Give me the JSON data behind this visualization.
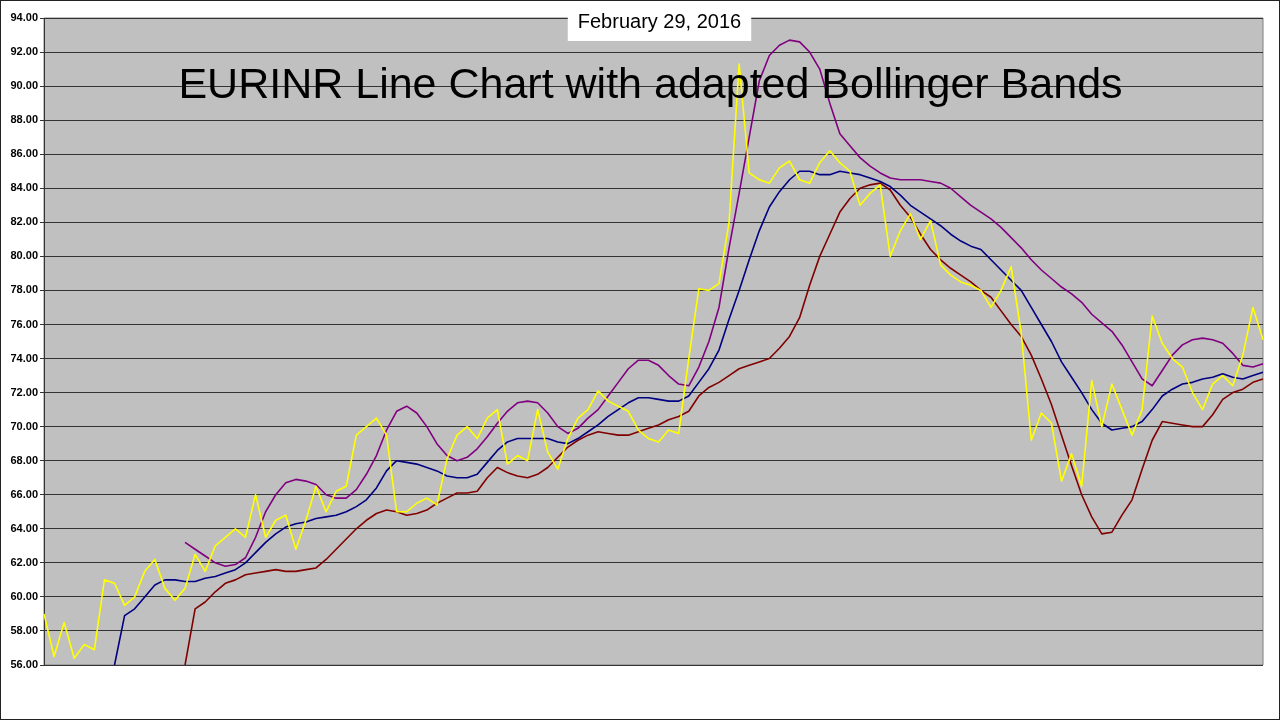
{
  "chart_data": {
    "type": "line",
    "title": "EURINR Line Chart with adapted Bollinger Bands",
    "subtitle": "February 29, 2016",
    "categories": [
      null,
      null,
      null,
      null,
      null,
      null,
      null,
      null,
      null,
      null,
      null,
      null,
      null,
      null,
      null,
      null,
      null,
      null,
      null,
      null,
      null,
      null,
      null,
      null,
      null,
      null,
      null,
      null,
      null,
      null,
      null,
      null,
      null,
      null,
      null,
      null,
      null,
      null,
      null,
      null,
      null,
      null,
      null,
      null,
      null,
      null,
      null,
      null,
      null,
      null,
      null,
      null,
      null,
      null,
      null,
      null,
      null,
      null,
      null,
      null,
      null,
      null,
      null,
      null,
      null,
      null,
      null,
      null,
      null,
      null,
      null,
      null,
      null,
      null,
      null,
      null,
      null,
      null,
      null,
      null,
      null,
      null,
      null,
      null,
      null,
      null,
      null,
      null,
      null,
      null,
      null,
      null,
      null,
      null,
      null,
      null,
      null,
      null,
      null,
      null,
      null,
      null,
      null,
      null,
      null,
      null,
      null,
      null,
      null,
      null,
      null,
      null,
      null,
      null,
      null,
      null,
      null,
      null,
      null,
      null,
      null,
      null
    ],
    "series": [
      {
        "color": "#ffff00",
        "values": [
          59.0,
          56.5,
          58.5,
          56.4,
          57.2,
          56.9,
          61.0,
          60.8,
          59.5,
          60.0,
          61.5,
          62.2,
          60.5,
          59.8,
          60.5,
          62.5,
          61.5,
          63.0,
          63.5,
          64.0,
          63.5,
          66.0,
          63.5,
          64.5,
          64.8,
          62.8,
          64.5,
          66.5,
          65.0,
          66.2,
          66.5,
          69.5,
          70.0,
          70.5,
          69.5,
          65.0,
          65.0,
          65.5,
          65.8,
          65.4,
          68.1,
          69.5,
          70.0,
          69.3,
          70.5,
          71.0,
          67.8,
          68.3,
          68.0,
          71.0,
          68.5,
          67.5,
          69.3,
          70.5,
          71.0,
          72.1,
          71.5,
          71.2,
          70.9,
          69.8,
          69.3,
          69.1,
          69.8,
          69.6,
          74.0,
          78.1,
          78.0,
          78.4,
          82.0,
          91.3,
          84.9,
          84.5,
          84.3,
          85.2,
          85.6,
          84.5,
          84.3,
          85.5,
          86.2,
          85.5,
          85.0,
          83.0,
          83.7,
          84.2,
          80.0,
          81.5,
          82.5,
          81.0,
          82.1,
          79.5,
          78.9,
          78.5,
          78.3,
          78.0,
          77.0,
          78.0,
          79.4,
          75.5,
          69.2,
          70.8,
          70.2,
          66.8,
          68.4,
          66.5,
          72.7,
          70.0,
          72.5,
          71.0,
          69.5,
          71.0,
          76.5,
          74.9,
          74.0,
          73.5,
          72.0,
          71.0,
          72.5,
          73.0,
          72.4,
          74.2,
          77.0,
          75.1
        ]
      },
      {
        "color": "#000080",
        "values": [
          null,
          null,
          null,
          null,
          null,
          null,
          null,
          56.0,
          58.9,
          59.3,
          60.0,
          60.7,
          61.0,
          61.0,
          60.9,
          60.9,
          61.1,
          61.2,
          61.4,
          61.6,
          62.0,
          62.6,
          63.2,
          63.7,
          64.1,
          64.3,
          64.4,
          64.6,
          64.7,
          64.8,
          65.0,
          65.3,
          65.7,
          66.4,
          67.4,
          68.0,
          67.9,
          67.8,
          67.6,
          67.4,
          67.1,
          67.0,
          67.0,
          67.2,
          67.9,
          68.6,
          69.1,
          69.3,
          69.3,
          69.3,
          69.3,
          69.1,
          69.0,
          69.3,
          69.7,
          70.1,
          70.6,
          71.0,
          71.4,
          71.7,
          71.7,
          71.6,
          71.5,
          71.5,
          71.8,
          72.6,
          73.4,
          74.5,
          76.3,
          78.0,
          79.8,
          81.5,
          82.9,
          83.8,
          84.5,
          85.0,
          85.0,
          84.8,
          84.8,
          85.0,
          84.9,
          84.8,
          84.6,
          84.4,
          84.1,
          83.6,
          83.0,
          82.6,
          82.2,
          81.8,
          81.3,
          80.9,
          80.6,
          80.4,
          79.8,
          79.2,
          78.6,
          78.0,
          77.0,
          76.0,
          75.0,
          73.8,
          72.9,
          72.0,
          71.0,
          70.2,
          69.8,
          69.9,
          70.0,
          70.3,
          71.0,
          71.8,
          72.2,
          72.5,
          72.6,
          72.8,
          72.9,
          73.1,
          72.9,
          72.8,
          73.0,
          73.2
        ]
      },
      {
        "color": "#800080",
        "values": [
          null,
          null,
          null,
          null,
          null,
          null,
          null,
          null,
          null,
          null,
          null,
          null,
          null,
          null,
          63.2,
          62.8,
          62.4,
          62.0,
          61.8,
          61.9,
          62.3,
          63.5,
          65.0,
          66.0,
          66.7,
          66.9,
          66.8,
          66.6,
          66.0,
          65.8,
          65.8,
          66.3,
          67.2,
          68.3,
          69.8,
          70.9,
          71.2,
          70.8,
          70.0,
          69.0,
          68.3,
          68.0,
          68.2,
          68.7,
          69.4,
          70.2,
          70.9,
          71.4,
          71.5,
          71.4,
          70.8,
          70.0,
          69.6,
          69.9,
          70.5,
          71.0,
          71.8,
          72.6,
          73.4,
          73.9,
          73.9,
          73.6,
          73.0,
          72.5,
          72.4,
          73.5,
          75.0,
          77.0,
          80.5,
          83.7,
          87.0,
          90.3,
          91.8,
          92.4,
          92.7,
          92.6,
          92.0,
          91.0,
          89.0,
          87.2,
          86.5,
          85.8,
          85.3,
          84.9,
          84.6,
          84.5,
          84.5,
          84.5,
          84.4,
          84.3,
          84.0,
          83.5,
          83.0,
          82.6,
          82.2,
          81.7,
          81.1,
          80.5,
          79.8,
          79.2,
          78.7,
          78.2,
          77.8,
          77.3,
          76.6,
          76.1,
          75.6,
          74.8,
          73.8,
          72.8,
          72.4,
          73.3,
          74.2,
          74.8,
          75.1,
          75.2,
          75.1,
          74.9,
          74.3,
          73.6,
          73.5,
          73.7
        ]
      },
      {
        "color": "#800000",
        "values": [
          null,
          null,
          null,
          null,
          null,
          null,
          null,
          null,
          null,
          null,
          null,
          null,
          null,
          null,
          56.0,
          59.3,
          59.7,
          60.3,
          60.8,
          61.0,
          61.3,
          61.4,
          61.5,
          61.6,
          61.5,
          61.5,
          61.6,
          61.7,
          62.2,
          62.8,
          63.4,
          64.0,
          64.5,
          64.9,
          65.1,
          65.0,
          64.8,
          64.9,
          65.1,
          65.5,
          65.8,
          66.1,
          66.1,
          66.2,
          67.0,
          67.6,
          67.3,
          67.1,
          67.0,
          67.2,
          67.6,
          68.2,
          68.8,
          69.2,
          69.5,
          69.7,
          69.6,
          69.5,
          69.5,
          69.7,
          69.9,
          70.1,
          70.4,
          70.6,
          70.9,
          71.8,
          72.3,
          72.6,
          73.0,
          73.4,
          73.6,
          73.8,
          74.0,
          74.6,
          75.3,
          76.4,
          78.3,
          80.0,
          81.3,
          82.6,
          83.4,
          84.0,
          84.2,
          84.3,
          83.9,
          83.0,
          82.3,
          81.3,
          80.4,
          79.8,
          79.3,
          78.9,
          78.5,
          78.0,
          77.6,
          76.8,
          76.0,
          75.3,
          74.2,
          72.8,
          71.3,
          69.5,
          67.7,
          66.0,
          64.7,
          63.7,
          63.8,
          64.8,
          65.7,
          67.5,
          69.2,
          70.3,
          70.2,
          70.1,
          70.0,
          70.0,
          70.7,
          71.6,
          72.0,
          72.2,
          72.6,
          72.8
        ]
      }
    ],
    "ylim": [
      56,
      94
    ],
    "yticks": [
      {
        "value": 56,
        "label": "56.00"
      },
      {
        "value": 58,
        "label": "58.00"
      },
      {
        "value": 60,
        "label": "60.00"
      },
      {
        "value": 62,
        "label": "62.00"
      },
      {
        "value": 64,
        "label": "64.00"
      },
      {
        "value": 66,
        "label": "66.00"
      },
      {
        "value": 68,
        "label": "68.00"
      },
      {
        "value": 70,
        "label": "70.00"
      },
      {
        "value": 72,
        "label": "72.00"
      },
      {
        "value": 74,
        "label": "74.00"
      },
      {
        "value": 76,
        "label": "76.00"
      },
      {
        "value": 78,
        "label": "78.00"
      },
      {
        "value": 80,
        "label": "80.00"
      },
      {
        "value": 82,
        "label": "82.00"
      },
      {
        "value": 84,
        "label": "84.00"
      },
      {
        "value": 86,
        "label": "86.00"
      },
      {
        "value": 88,
        "label": "88.00"
      },
      {
        "value": 90,
        "label": "90.00"
      },
      {
        "value": 92,
        "label": "92.00"
      },
      {
        "value": 94,
        "label": "94.00"
      }
    ],
    "grid": "y",
    "marker": "none",
    "legend": false
  }
}
